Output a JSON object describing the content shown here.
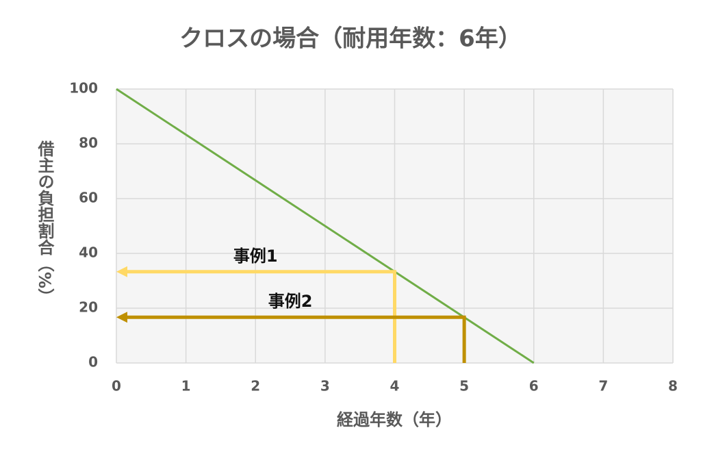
{
  "chart_data": {
    "type": "line",
    "title": "クロスの場合（耐用年数：6年）",
    "x_label": "経過年数（年）",
    "y_label": "借主の負担割合（%）",
    "series": [
      {
        "x": [
          0,
          6
        ],
        "values": [
          100,
          0
        ],
        "color": "#70ad47"
      }
    ],
    "xlim": [
      0,
      8
    ],
    "xticks": [
      0,
      1,
      2,
      3,
      4,
      5,
      6,
      7,
      8
    ],
    "ylim": [
      0,
      100
    ],
    "yticks": [
      0,
      20,
      40,
      60,
      80,
      100
    ],
    "grid": true,
    "annotations": [
      {
        "text": "事例1",
        "x": 4,
        "y": 33.3,
        "color": "#ffd966"
      },
      {
        "text": "事例2",
        "x": 5,
        "y": 16.7,
        "color": "#bf9000"
      }
    ]
  }
}
